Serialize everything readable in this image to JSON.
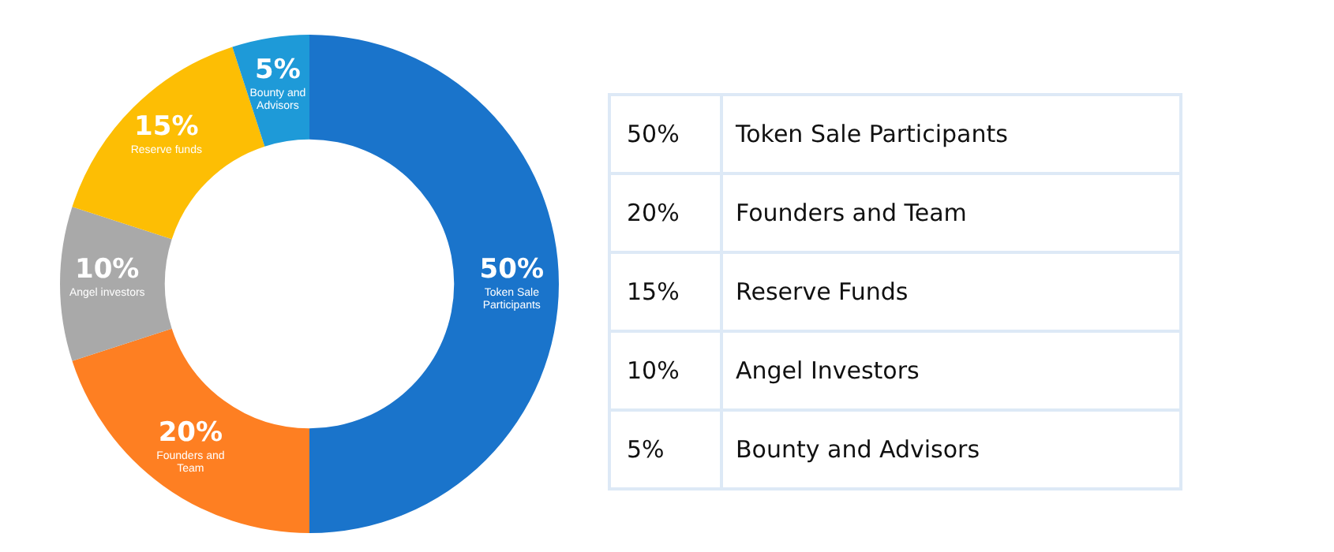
{
  "chart_data": {
    "type": "donut",
    "categories": [
      "Token Sale Participants",
      "Founders and Team",
      "Angel investors",
      "Reserve funds",
      "Bounty and Advisors"
    ],
    "values": [
      50,
      20,
      10,
      15,
      5
    ],
    "value_labels": [
      "50%",
      "20%",
      "10%",
      "15%",
      "5%"
    ],
    "colors": [
      "#1a74cb",
      "#fe7f22",
      "#a9a9a9",
      "#fdbe04",
      "#1e9ad8"
    ],
    "annotations": [
      "50%",
      "Token Sale Participants",
      "20%",
      "Founders and Team",
      "15%",
      "Reserve Funds",
      "10%",
      "Angel Investors",
      "5%",
      "Bounty and Advisors"
    ]
  }
}
